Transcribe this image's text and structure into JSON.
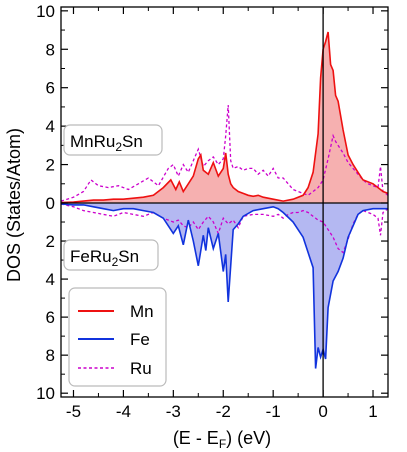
{
  "chart_data": {
    "type": "area",
    "xlabel": "(E - E",
    "xlabel_sub": "F",
    "xlabel_tail": ") (eV)",
    "ylabel": "DOS (States/Atom)",
    "xlim": [
      -5.25,
      1.3
    ],
    "ylim_upper": [
      0,
      10.2
    ],
    "ylim_lower": [
      0,
      10.2
    ],
    "x_ticks": [
      -5,
      -4,
      -3,
      -2,
      -1,
      0,
      1
    ],
    "x_tick_labels": [
      "-5",
      "-4",
      "-3",
      "-2",
      "-1",
      "0",
      "1"
    ],
    "y_ticks": [
      0,
      2,
      4,
      6,
      8,
      10
    ],
    "y_tick_labels": [
      "0",
      "2",
      "4",
      "6",
      "8",
      "10"
    ],
    "fermi_level": 0,
    "panels": [
      {
        "name_main": "MnRu",
        "name_sub": "2",
        "name_tail": "Sn",
        "position": "upper-left"
      },
      {
        "name_main": "FeRu",
        "name_sub": "2",
        "name_tail": "Sn",
        "position": "lower-left"
      }
    ],
    "legend": {
      "position": "lower-left",
      "entries": [
        {
          "label": "Mn",
          "color": "#ee1111",
          "style": "solid"
        },
        {
          "label": "Fe",
          "color": "#1133dd",
          "style": "solid"
        },
        {
          "label": "Ru",
          "color": "#cc00cc",
          "style": "dashed"
        }
      ]
    },
    "series": [
      {
        "name": "Mn",
        "direction": "up",
        "color": "#ee1111",
        "fill": "#f6b0b0",
        "x": [
          -5.25,
          -5.0,
          -4.8,
          -4.6,
          -4.4,
          -4.2,
          -4.0,
          -3.8,
          -3.6,
          -3.4,
          -3.2,
          -3.05,
          -2.95,
          -2.88,
          -2.8,
          -2.7,
          -2.6,
          -2.5,
          -2.45,
          -2.4,
          -2.35,
          -2.3,
          -2.2,
          -2.1,
          -2.0,
          -1.95,
          -1.9,
          -1.85,
          -1.8,
          -1.7,
          -1.6,
          -1.5,
          -1.4,
          -1.3,
          -1.2,
          -1.0,
          -0.8,
          -0.6,
          -0.4,
          -0.3,
          -0.2,
          -0.1,
          -0.05,
          0.0,
          0.05,
          0.1,
          0.15,
          0.2,
          0.25,
          0.3,
          0.4,
          0.5,
          0.6,
          0.7,
          0.8,
          1.0,
          1.1,
          1.2,
          1.3
        ],
        "values": [
          0.02,
          0.05,
          0.1,
          0.15,
          0.15,
          0.2,
          0.2,
          0.25,
          0.3,
          0.4,
          0.8,
          1.2,
          0.7,
          1.1,
          0.6,
          1.0,
          1.4,
          2.3,
          2.5,
          1.7,
          1.6,
          1.5,
          2.1,
          1.4,
          1.8,
          2.6,
          1.5,
          1.0,
          0.8,
          0.6,
          0.5,
          0.4,
          0.35,
          0.4,
          0.3,
          0.2,
          0.1,
          0.2,
          0.4,
          0.8,
          1.6,
          3.6,
          6.5,
          8.0,
          8.4,
          8.9,
          7.2,
          6.9,
          5.6,
          5.3,
          3.8,
          2.5,
          2.0,
          1.6,
          1.2,
          1.0,
          0.8,
          0.6,
          0.5
        ]
      },
      {
        "name": "Fe",
        "direction": "down",
        "color": "#1133dd",
        "fill": "#b4b8f2",
        "x": [
          -5.25,
          -5.0,
          -4.8,
          -4.6,
          -4.4,
          -4.2,
          -4.0,
          -3.8,
          -3.6,
          -3.4,
          -3.2,
          -3.0,
          -2.9,
          -2.8,
          -2.7,
          -2.6,
          -2.5,
          -2.4,
          -2.35,
          -2.3,
          -2.2,
          -2.1,
          -2.0,
          -1.95,
          -1.9,
          -1.8,
          -1.7,
          -1.6,
          -1.4,
          -1.2,
          -1.0,
          -0.9,
          -0.8,
          -0.6,
          -0.4,
          -0.3,
          -0.2,
          -0.15,
          -0.1,
          -0.05,
          0.0,
          0.05,
          0.1,
          0.2,
          0.3,
          0.4,
          0.5,
          0.6,
          0.7,
          0.8,
          1.0,
          1.2,
          1.3
        ],
        "values": [
          0.05,
          0.1,
          0.1,
          0.2,
          0.3,
          0.4,
          0.3,
          0.3,
          0.4,
          0.5,
          0.8,
          1.6,
          1.2,
          2.2,
          0.9,
          2.0,
          3.3,
          1.7,
          2.5,
          1.3,
          2.4,
          1.6,
          3.6,
          2.7,
          5.2,
          1.4,
          1.1,
          0.7,
          0.4,
          0.3,
          0.2,
          0.3,
          0.5,
          1.0,
          1.8,
          2.6,
          3.4,
          8.7,
          7.6,
          8.1,
          7.7,
          8.2,
          5.5,
          4.1,
          3.6,
          2.9,
          1.8,
          1.2,
          0.6,
          0.4,
          0.3,
          0.3,
          0.3
        ]
      },
      {
        "name": "Ru",
        "direction": "both",
        "color": "#cc00cc",
        "style": "dashed",
        "x_up": [
          -5.25,
          -5.0,
          -4.8,
          -4.65,
          -4.5,
          -4.3,
          -4.1,
          -3.9,
          -3.7,
          -3.5,
          -3.3,
          -3.1,
          -3.0,
          -2.9,
          -2.8,
          -2.7,
          -2.6,
          -2.5,
          -2.4,
          -2.3,
          -2.2,
          -2.1,
          -2.0,
          -1.95,
          -1.9,
          -1.85,
          -1.8,
          -1.7,
          -1.6,
          -1.5,
          -1.4,
          -1.3,
          -1.2,
          -1.1,
          -1.0,
          -0.9,
          -0.8,
          -0.7,
          -0.6,
          -0.5,
          -0.4,
          -0.3,
          -0.2,
          -0.1,
          0.0,
          0.1,
          0.2,
          0.25,
          0.3,
          0.4,
          0.5,
          0.6,
          0.7,
          0.8,
          0.9,
          1.0,
          1.1,
          1.15,
          1.2,
          1.3
        ],
        "values_up": [
          0.1,
          0.3,
          0.6,
          1.2,
          0.9,
          0.8,
          0.9,
          0.7,
          1.0,
          1.3,
          0.9,
          1.8,
          2.0,
          1.4,
          2.0,
          1.6,
          2.2,
          2.8,
          1.9,
          2.2,
          2.4,
          2.0,
          2.3,
          3.5,
          5.1,
          2.2,
          1.8,
          1.9,
          1.7,
          1.8,
          1.8,
          1.5,
          1.7,
          1.4,
          1.8,
          1.3,
          1.3,
          1.0,
          0.7,
          0.6,
          0.5,
          0.4,
          0.6,
          0.8,
          1.2,
          2.3,
          3.5,
          3.2,
          3.0,
          2.6,
          2.1,
          1.8,
          1.5,
          1.2,
          1.0,
          0.9,
          0.8,
          1.9,
          0.6,
          0.4
        ],
        "x_down": [
          -5.25,
          -5.0,
          -4.8,
          -4.6,
          -4.4,
          -4.2,
          -4.0,
          -3.8,
          -3.6,
          -3.4,
          -3.2,
          -3.0,
          -2.9,
          -2.8,
          -2.7,
          -2.6,
          -2.5,
          -2.4,
          -2.3,
          -2.2,
          -2.1,
          -2.0,
          -1.9,
          -1.8,
          -1.7,
          -1.6,
          -1.4,
          -1.2,
          -1.0,
          -0.9,
          -0.8,
          -0.7,
          -0.6,
          -0.5,
          -0.4,
          -0.3,
          -0.2,
          -0.1,
          0.0,
          0.1,
          0.2,
          0.3,
          0.4,
          0.5,
          0.6,
          0.7,
          0.8,
          0.9,
          1.0,
          1.1,
          1.15,
          1.2,
          1.3
        ],
        "values_down": [
          0.05,
          0.2,
          0.4,
          0.5,
          0.6,
          0.7,
          0.5,
          0.6,
          0.7,
          0.5,
          0.8,
          1.0,
          0.9,
          1.2,
          1.3,
          1.0,
          1.4,
          1.0,
          0.7,
          1.0,
          1.6,
          0.8,
          1.1,
          0.9,
          1.3,
          0.7,
          0.6,
          0.6,
          0.7,
          0.6,
          0.8,
          0.6,
          0.5,
          0.5,
          0.4,
          0.5,
          0.7,
          0.9,
          1.0,
          1.4,
          1.8,
          2.4,
          2.6,
          1.9,
          1.1,
          0.6,
          0.4,
          0.5,
          0.6,
          0.8,
          1.7,
          0.5,
          0.3
        ]
      }
    ]
  }
}
